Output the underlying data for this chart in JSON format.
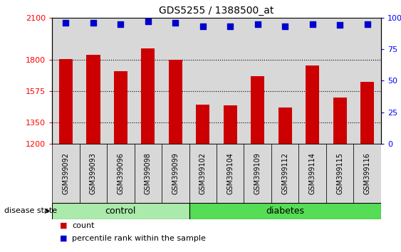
{
  "title": "GDS5255 / 1388500_at",
  "samples": [
    "GSM399092",
    "GSM399093",
    "GSM399096",
    "GSM399098",
    "GSM399099",
    "GSM399102",
    "GSM399104",
    "GSM399109",
    "GSM399112",
    "GSM399114",
    "GSM399115",
    "GSM399116"
  ],
  "counts": [
    1802,
    1835,
    1720,
    1880,
    1800,
    1480,
    1475,
    1680,
    1460,
    1760,
    1530,
    1640
  ],
  "percentile_ranks": [
    96,
    96,
    95,
    97,
    96,
    93,
    93,
    95,
    93,
    95,
    94,
    95
  ],
  "groups": [
    "control",
    "control",
    "control",
    "control",
    "control",
    "diabetes",
    "diabetes",
    "diabetes",
    "diabetes",
    "diabetes",
    "diabetes",
    "diabetes"
  ],
  "n_control": 5,
  "n_diabetes": 7,
  "control_color": "#aaeaaa",
  "diabetes_color": "#55dd55",
  "bar_color": "#CC0000",
  "percentile_color": "#0000CC",
  "sample_box_color": "#d8d8d8",
  "ymin": 1200,
  "ymax": 2100,
  "yticks_left": [
    1200,
    1350,
    1575,
    1800,
    2100
  ],
  "yticks_right": [
    0,
    25,
    50,
    75,
    100
  ],
  "grid_values": [
    1350,
    1575,
    1800
  ]
}
